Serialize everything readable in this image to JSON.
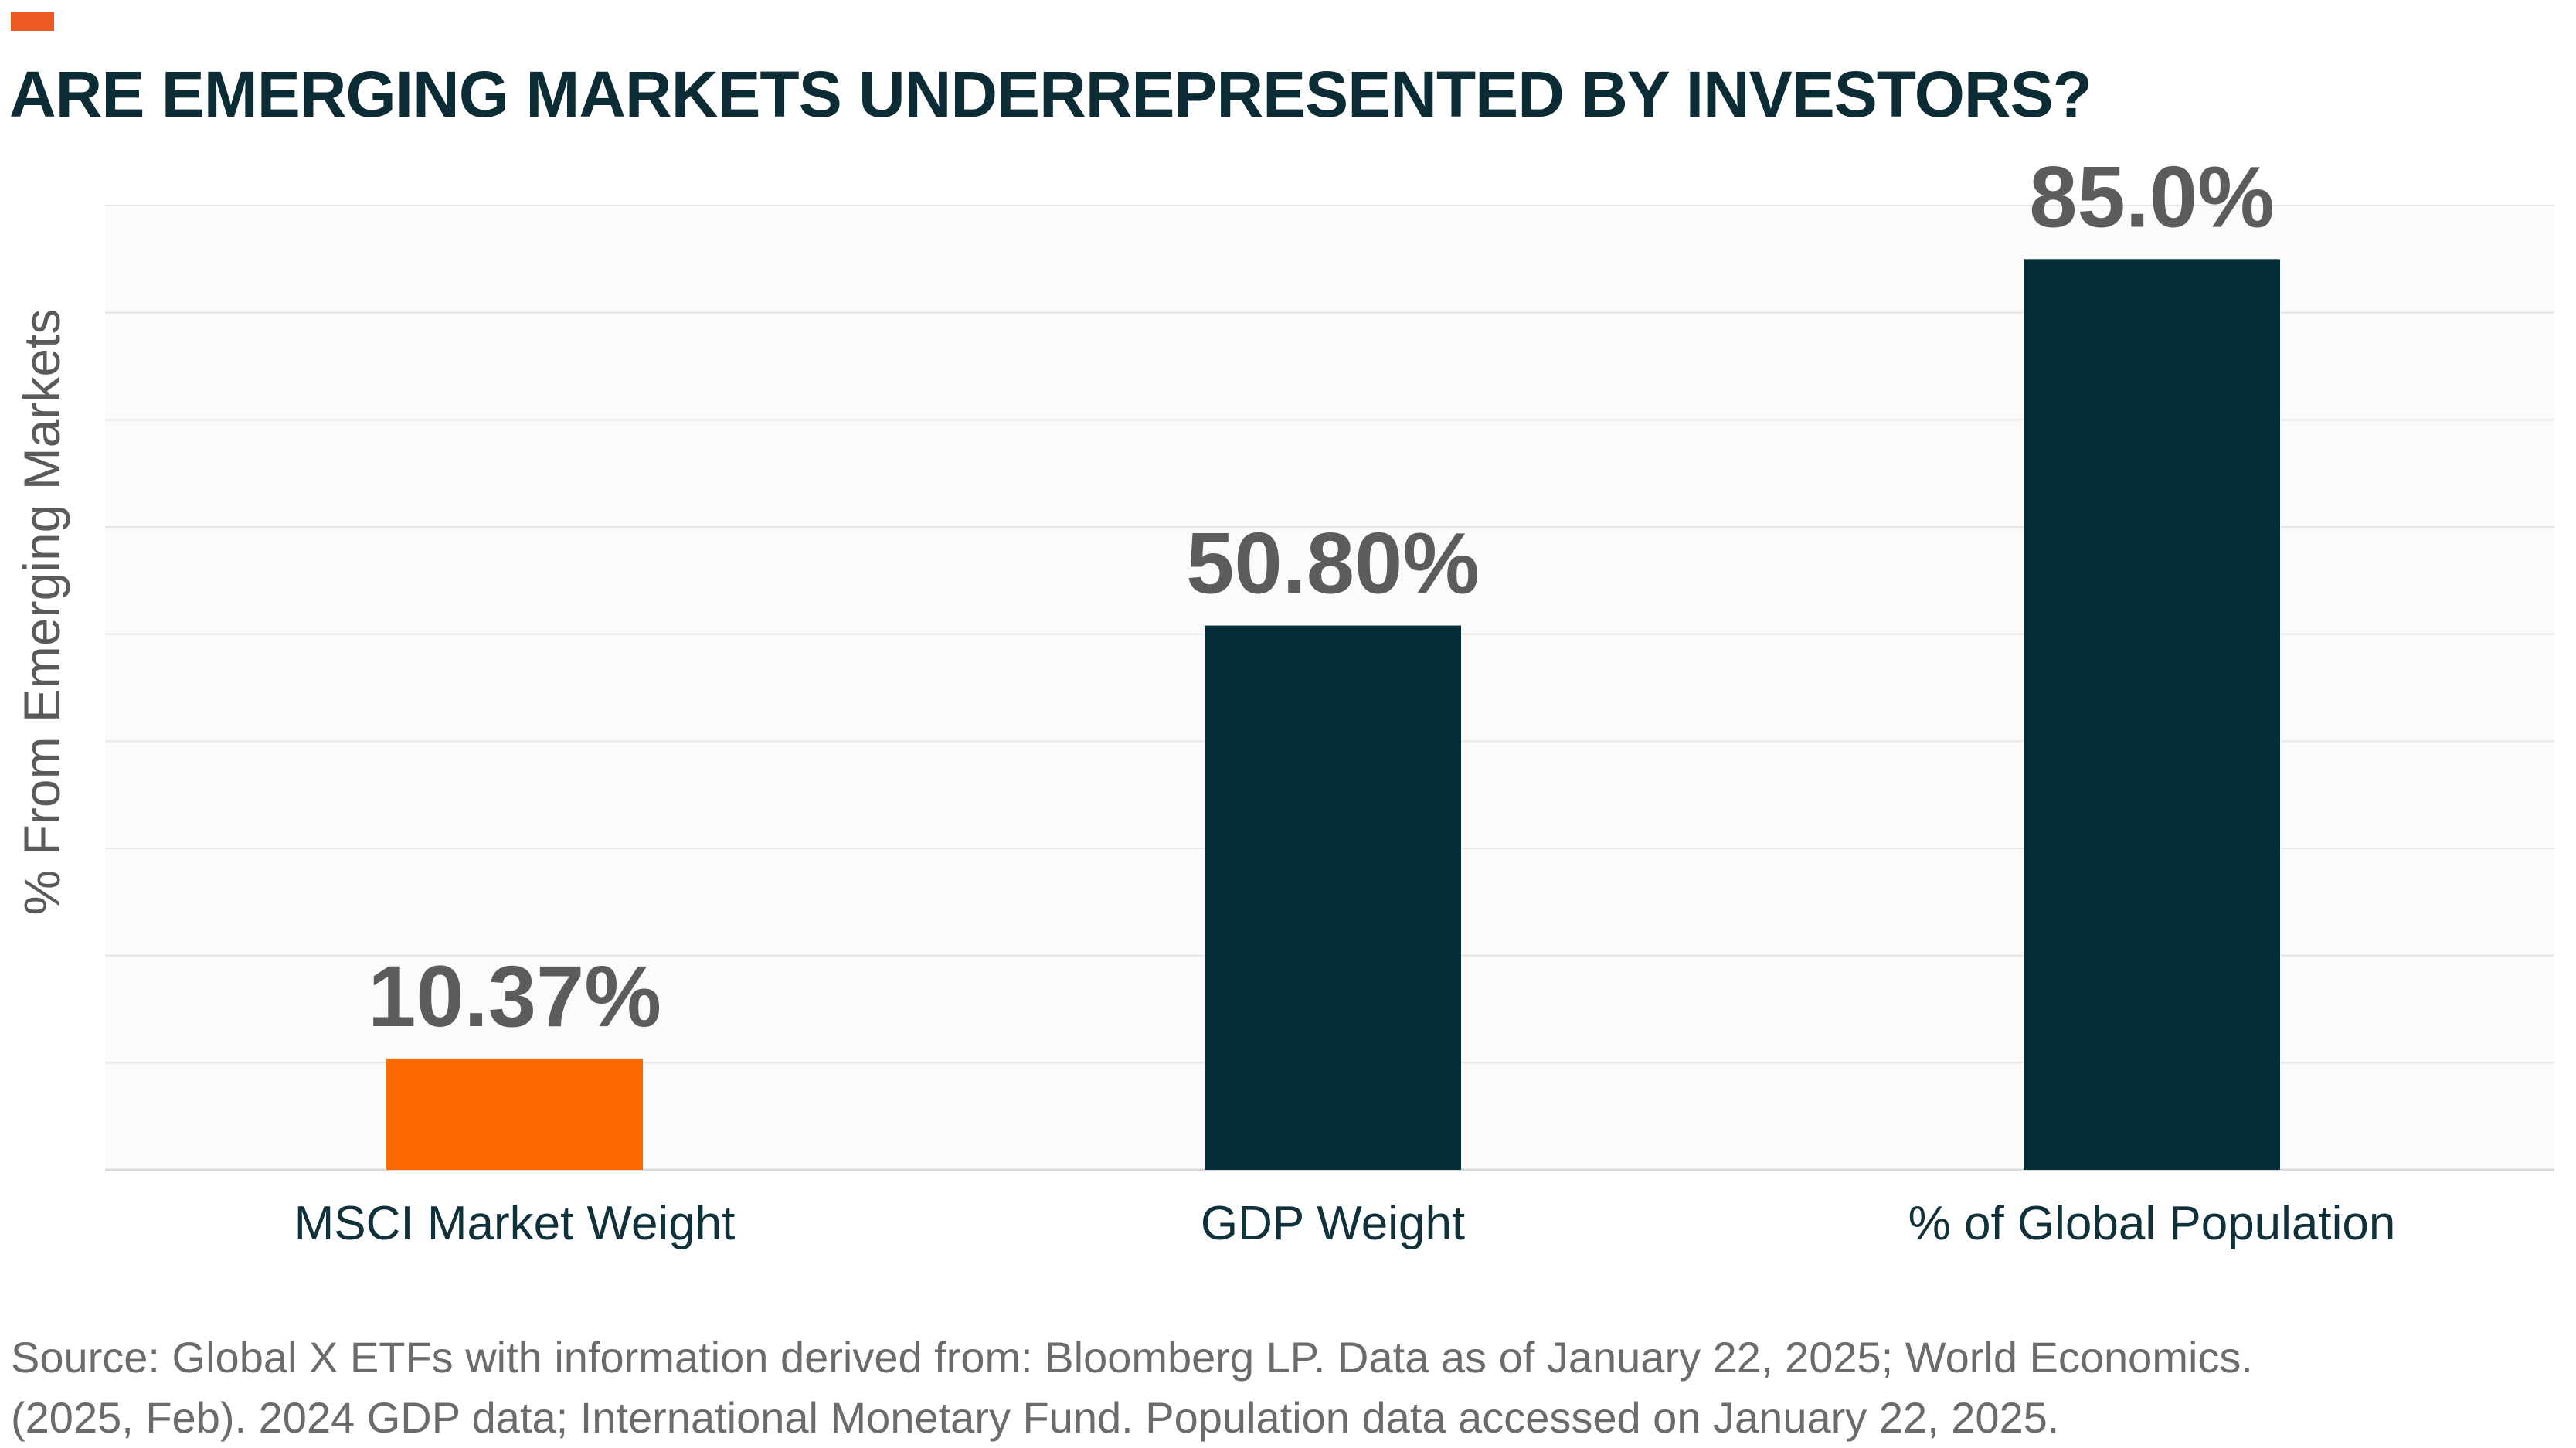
{
  "title": "ARE EMERGING MARKETS UNDERREPRESENTED BY INVESTORS?",
  "colors": {
    "accent": "#ef5a24",
    "title": "#0c2c35",
    "highlight_bar": "#ff6a00",
    "bar": "#022d38",
    "value_label": "#5c5c5c",
    "category_label": "#10303a",
    "gridline": "#e6e6e6",
    "plot_background": "#fafbfa"
  },
  "chart_data": {
    "type": "bar",
    "title": "ARE EMERGING MARKETS UNDERREPRESENTED BY INVESTORS?",
    "xlabel": "",
    "ylabel": "% From Emerging Markets",
    "categories": [
      "MSCI Market Weight",
      "GDP Weight",
      "% of Global Population"
    ],
    "values": [
      10.37,
      50.8,
      85.0
    ],
    "value_labels": [
      "10.37%",
      "50.80%",
      "85.0%"
    ],
    "ylim": [
      0,
      90
    ],
    "grid": true,
    "y_tick_labels_shown": false,
    "highlighted_category": "MSCI Market Weight"
  },
  "source": {
    "line1": "Source: Global X ETFs with information derived from: Bloomberg LP. Data as of January 22, 2025; World Economics.",
    "line2": "(2025, Feb). 2024 GDP data; International Monetary Fund. Population data accessed on January 22, 2025."
  }
}
